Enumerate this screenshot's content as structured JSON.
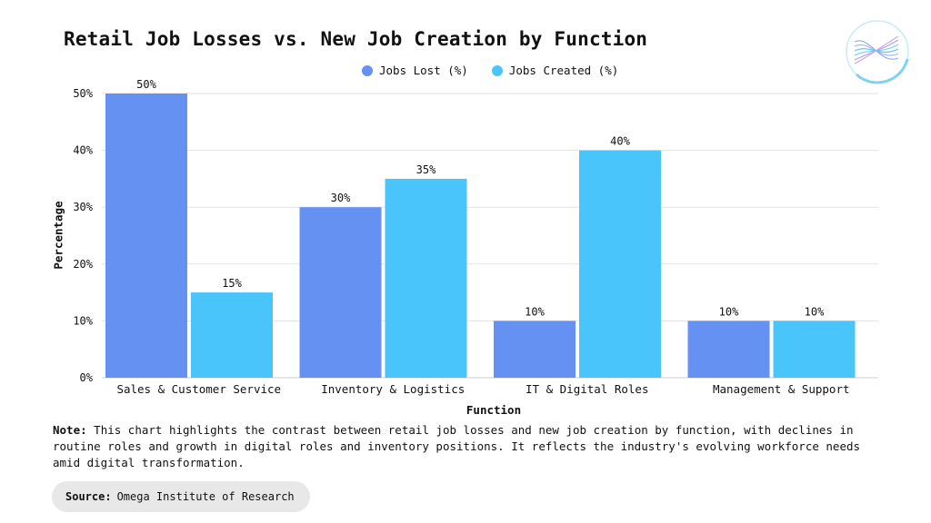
{
  "chart_data": {
    "type": "bar",
    "title": "Retail Job Losses vs. New Job Creation by Function",
    "xlabel": "Function",
    "ylabel": "Percentage",
    "categories": [
      "Sales & Customer Service",
      "Inventory & Logistics",
      "IT & Digital Roles",
      "Management & Support"
    ],
    "series": [
      {
        "name": "Jobs Lost (%)",
        "values": [
          50,
          30,
          10,
          10
        ],
        "color": "#6591f3"
      },
      {
        "name": "Jobs Created (%)",
        "values": [
          15,
          35,
          40,
          10
        ],
        "color": "#4ac5fb"
      }
    ],
    "ylim": [
      0,
      50
    ],
    "yticks": [
      "0%",
      "10%",
      "20%",
      "30%",
      "40%",
      "50%"
    ],
    "value_suffix": "%",
    "grid": true,
    "legend_position": "top-center"
  },
  "note": {
    "label": "Note:",
    "text": "This chart highlights the contrast between retail job losses and new job creation by function, with declines in routine roles and growth in digital roles and inventory positions. It reflects the industry's evolving workforce needs amid digital transformation."
  },
  "source": {
    "label": "Source:",
    "text": "Omega Institute of Research"
  },
  "logo": {
    "icon": "helix-logo-icon"
  }
}
